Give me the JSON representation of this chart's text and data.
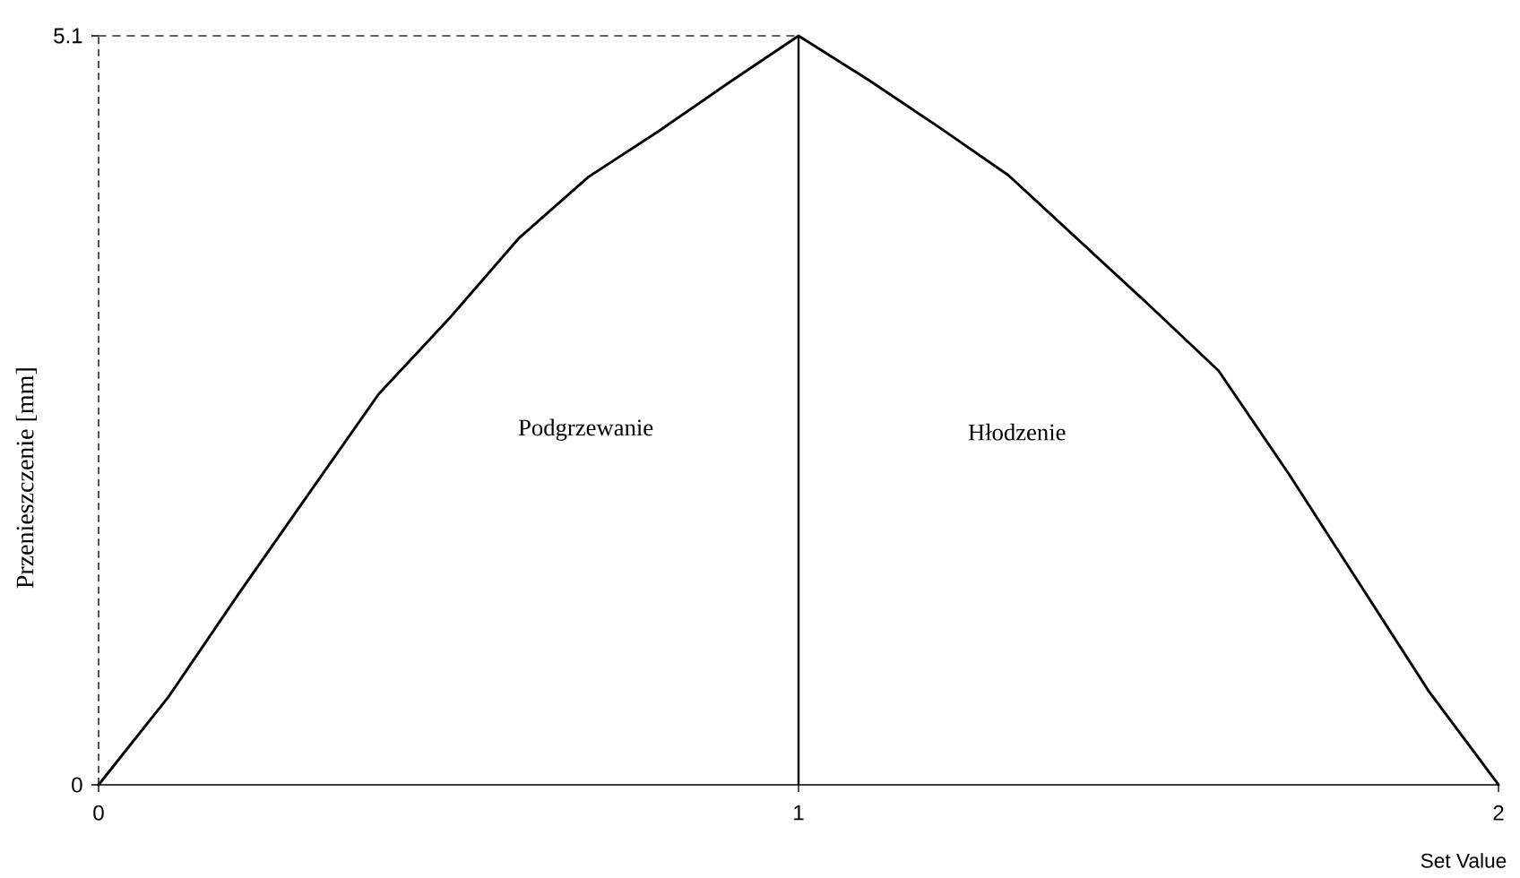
{
  "chart_data": {
    "type": "line",
    "xlabel": "Set Value",
    "ylabel": "Przenieszczenie [mm]",
    "annotations": [
      "Podgrzewanie",
      "Hłodzenie"
    ],
    "series": [
      {
        "x": [
          0,
          0.1,
          0.2,
          0.3,
          0.4,
          0.5,
          0.6,
          0.7,
          0.8,
          0.9,
          1,
          1.1,
          1.2,
          1.3,
          1.4,
          1.5,
          1.6,
          1.7,
          1.8,
          1.9,
          2
        ],
        "values": [
          0,
          0.6,
          1.3,
          1.98,
          2.66,
          3.17,
          3.72,
          4.14,
          4.45,
          4.78,
          5.1,
          4.8,
          4.48,
          4.15,
          3.71,
          3.27,
          2.82,
          2.12,
          1.38,
          0.64,
          0
        ],
        "color": "#000000"
      },
      {
        "x": [
          0,
          1
        ],
        "values": [
          5.1,
          5.1
        ],
        "color": "#333333",
        "line_style": "dashed"
      }
    ],
    "xlim": [
      0,
      2
    ],
    "ylim": [
      0,
      5.1
    ],
    "xticks": [
      0,
      1,
      2
    ],
    "yticks": [
      0,
      5.1
    ],
    "ref_lines": [
      {
        "axis": "x",
        "value": 1,
        "color": "#000000"
      }
    ],
    "marker": "none",
    "line_style": "solid"
  }
}
